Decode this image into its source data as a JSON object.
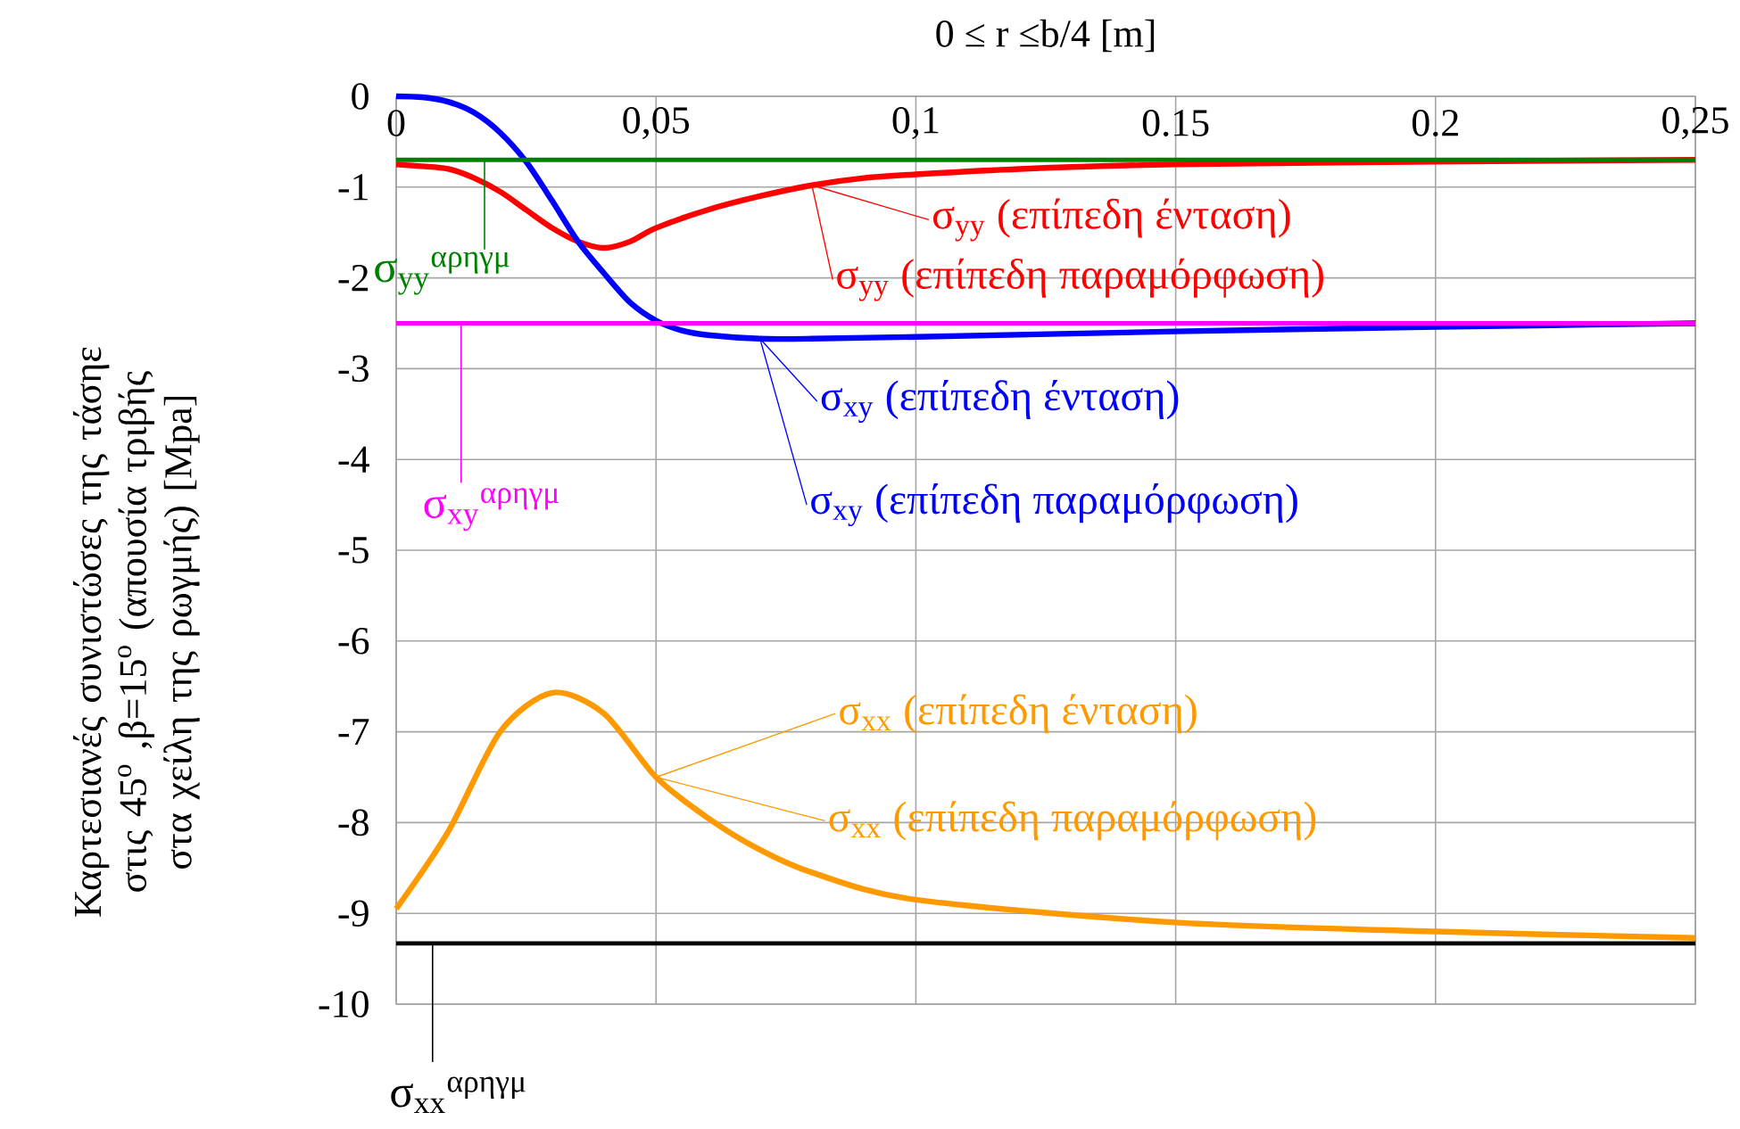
{
  "chart_data": {
    "type": "line",
    "xlabel": "0 ≤ r ≤b/4 [m]",
    "ylabel": "Καρτεσιανές συνιστώσες της τάσηε στις 45$^{ο}$ ,β=15$^{ο}$ (απουσία τριβής στα χείλη της ρωγμής) [Mpa]",
    "xlim": [
      0,
      0.25
    ],
    "ylim": [
      -10,
      0
    ],
    "xticks": [
      0,
      {
        "value": 0.05,
        "label": "0,05"
      },
      {
        "value": 0.1,
        "label": "0,1"
      },
      0.15,
      0.2,
      {
        "value": 0.25,
        "label": "0,25"
      }
    ],
    "yticks": [
      -10,
      -9,
      -8,
      -7,
      -6,
      -5,
      -4,
      -3,
      -2,
      -1,
      0
    ],
    "grid": true,
    "series": [
      {
        "name": "σ$_{yy}$ (επίπεδη ένταση)",
        "color": "#ff0000",
        "x": [
          0,
          0.005,
          0.01,
          0.015,
          0.02,
          0.025,
          0.03,
          0.035,
          0.04,
          0.045,
          0.05,
          0.06,
          0.07,
          0.08,
          0.09,
          0.1,
          0.12,
          0.15,
          0.2,
          0.25
        ],
        "values": [
          -0.75,
          -0.77,
          -0.8,
          -0.9,
          -1.05,
          -1.25,
          -1.45,
          -1.6,
          -1.67,
          -1.6,
          -1.45,
          -1.25,
          -1.1,
          -0.98,
          -0.9,
          -0.86,
          -0.8,
          -0.75,
          -0.72,
          -0.7
        ]
      },
      {
        "name": "σ$_{xy}$ (επίπεδη ένταση)",
        "color": "#0000ff",
        "x": [
          0,
          0.005,
          0.01,
          0.015,
          0.02,
          0.025,
          0.03,
          0.035,
          0.04,
          0.045,
          0.05,
          0.055,
          0.06,
          0.07,
          0.08,
          0.1,
          0.15,
          0.2,
          0.25
        ],
        "values": [
          0,
          -0.01,
          -0.06,
          -0.18,
          -0.4,
          -0.72,
          -1.15,
          -1.6,
          -1.95,
          -2.27,
          -2.47,
          -2.58,
          -2.63,
          -2.67,
          -2.67,
          -2.65,
          -2.59,
          -2.54,
          -2.5
        ]
      },
      {
        "name": "σ$_{xx}$ (επίπεδη ένταση)",
        "color": "#ff9900",
        "x": [
          0,
          0.01,
          0.02,
          0.03,
          0.04,
          0.05,
          0.06,
          0.07,
          0.08,
          0.1,
          0.15,
          0.2,
          0.25
        ],
        "values": [
          -8.95,
          -8.1,
          -7.0,
          -6.57,
          -6.8,
          -7.5,
          -7.95,
          -8.3,
          -8.55,
          -8.85,
          -9.1,
          -9.2,
          -9.27
        ]
      }
    ],
    "annotations": [
      {
        "text": "σ$_{yy}$ (επίπεδη παραμόρφωση)",
        "x": 0.08,
        "y": -0.98
      },
      {
        "text": "σ$_{xy}$ (επίπεδη παραμόρφωση)",
        "x": 0.07,
        "y": -2.67
      },
      {
        "text": "σ$_{xx}$ (επίπεδη παραμόρφωση)",
        "x": 0.05,
        "y": -7.5
      }
    ],
    "ref_lines": [
      {
        "axis": "y",
        "value": -0.7,
        "label": "σ$_{yy}$$^{αρηγμ}$",
        "color": "#008000"
      },
      {
        "axis": "y",
        "value": -2.5,
        "label": "σ$_{xy}$$^{αρηγμ}$",
        "color": "#ff00ff"
      },
      {
        "axis": "y",
        "value": -9.33,
        "label": "σ$_{xx}$$^{αρηγμ}$",
        "color": "#000000"
      }
    ]
  }
}
